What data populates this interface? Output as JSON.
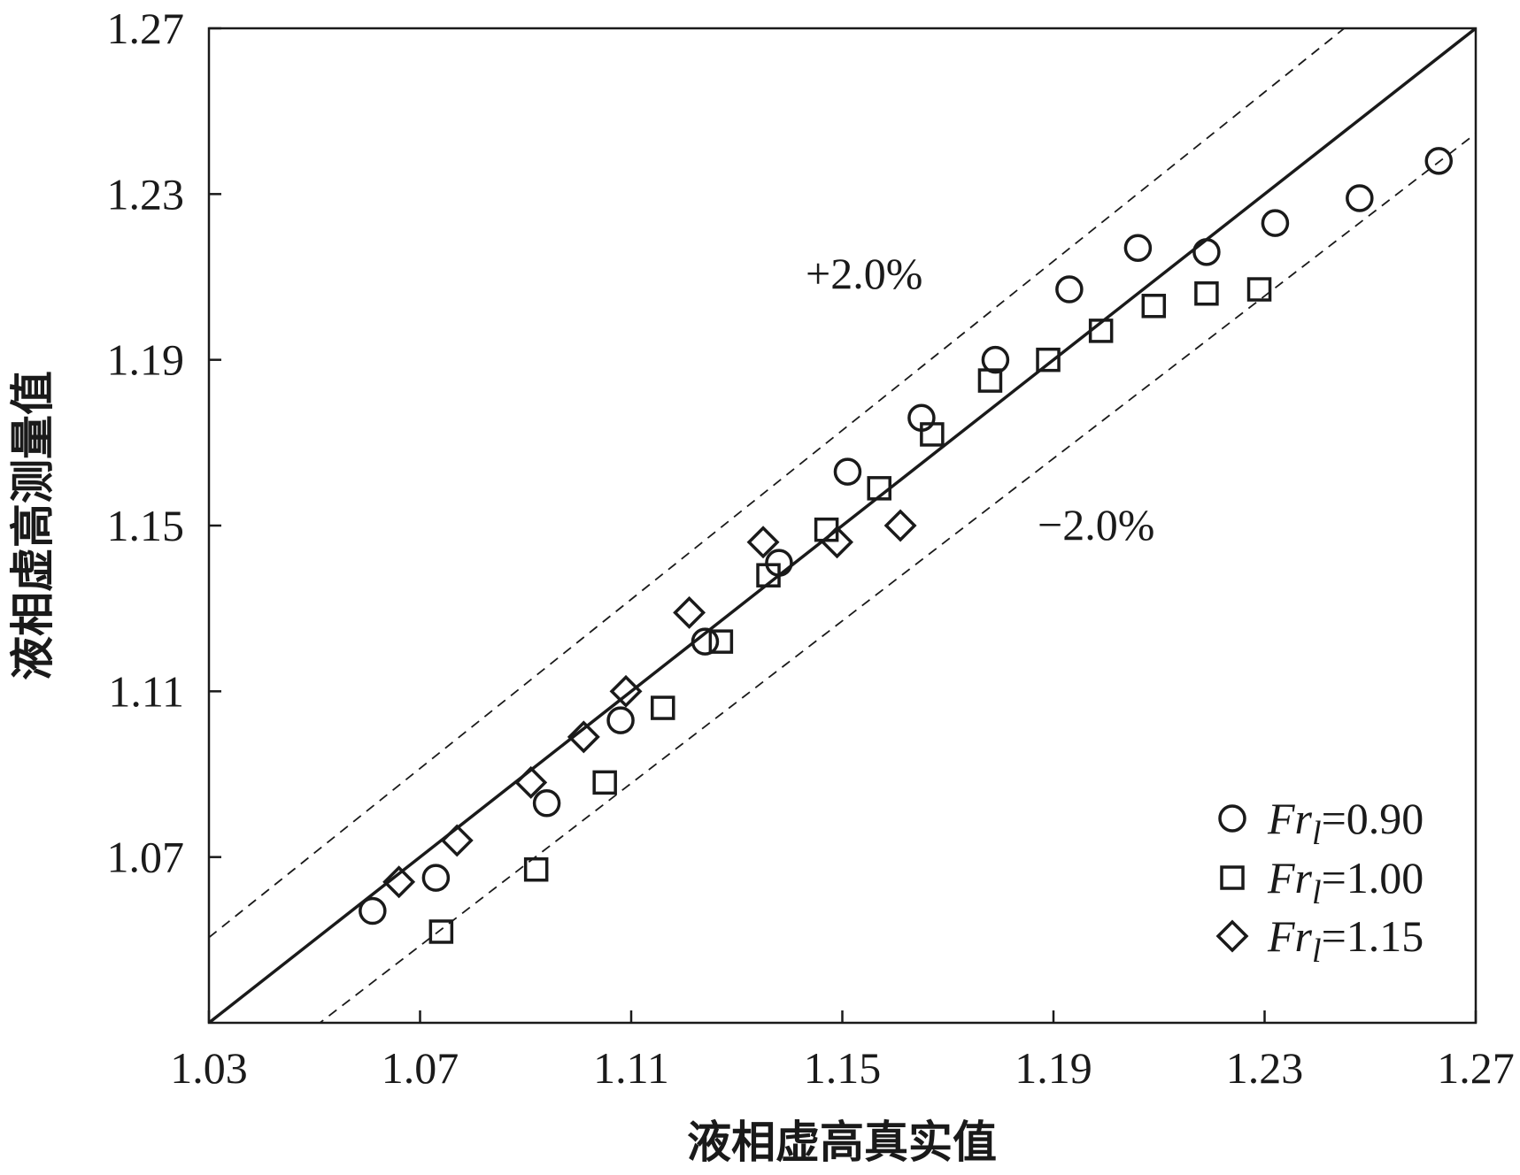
{
  "chart_data": {
    "type": "scatter",
    "title": "",
    "xlabel": "液相虚高真实值",
    "ylabel": "液相虚高测量值",
    "xlim": [
      1.03,
      1.27
    ],
    "ylim": [
      1.03,
      1.27
    ],
    "x_ticks": [
      "1.03",
      "1.07",
      "1.11",
      "1.15",
      "1.19",
      "1.23",
      "1.27"
    ],
    "y_ticks": [
      "1.07",
      "1.11",
      "1.15",
      "1.19",
      "1.23",
      "1.27"
    ],
    "grid": false,
    "legend_position": "bottom-right",
    "reference_lines": [
      {
        "label": "",
        "style": "solid",
        "factor": 1.0
      },
      {
        "label": "+2.0%",
        "style": "dashed",
        "factor": 1.02
      },
      {
        "label": "−2.0%",
        "style": "dashed",
        "factor": 0.98
      }
    ],
    "series": [
      {
        "name_prefix": "Fr",
        "name_sub": "l",
        "name_value": "=0.90",
        "marker": "circle",
        "points": [
          [
            1.061,
            1.057
          ],
          [
            1.073,
            1.065
          ],
          [
            1.094,
            1.083
          ],
          [
            1.108,
            1.103
          ],
          [
            1.124,
            1.122
          ],
          [
            1.138,
            1.141
          ],
          [
            1.151,
            1.163
          ],
          [
            1.165,
            1.176
          ],
          [
            1.179,
            1.19
          ],
          [
            1.193,
            1.207
          ],
          [
            1.206,
            1.217
          ],
          [
            1.219,
            1.216
          ],
          [
            1.232,
            1.223
          ],
          [
            1.248,
            1.229
          ],
          [
            1.263,
            1.238
          ]
        ]
      },
      {
        "name_prefix": "Fr",
        "name_sub": "l",
        "name_value": "=1.00",
        "marker": "square",
        "points": [
          [
            1.074,
            1.052
          ],
          [
            1.092,
            1.067
          ],
          [
            1.105,
            1.088
          ],
          [
            1.116,
            1.106
          ],
          [
            1.127,
            1.122
          ],
          [
            1.136,
            1.138
          ],
          [
            1.147,
            1.149
          ],
          [
            1.157,
            1.159
          ],
          [
            1.167,
            1.172
          ],
          [
            1.178,
            1.185
          ],
          [
            1.189,
            1.19
          ],
          [
            1.199,
            1.197
          ],
          [
            1.209,
            1.203
          ],
          [
            1.219,
            1.206
          ],
          [
            1.229,
            1.207
          ]
        ]
      },
      {
        "name_prefix": "Fr",
        "name_sub": "l",
        "name_value": "=1.15",
        "marker": "diamond",
        "points": [
          [
            1.066,
            1.064
          ],
          [
            1.077,
            1.074
          ],
          [
            1.091,
            1.088
          ],
          [
            1.101,
            1.099
          ],
          [
            1.109,
            1.11
          ],
          [
            1.121,
            1.129
          ],
          [
            1.135,
            1.146
          ],
          [
            1.149,
            1.146
          ],
          [
            1.161,
            1.15
          ]
        ]
      }
    ]
  }
}
